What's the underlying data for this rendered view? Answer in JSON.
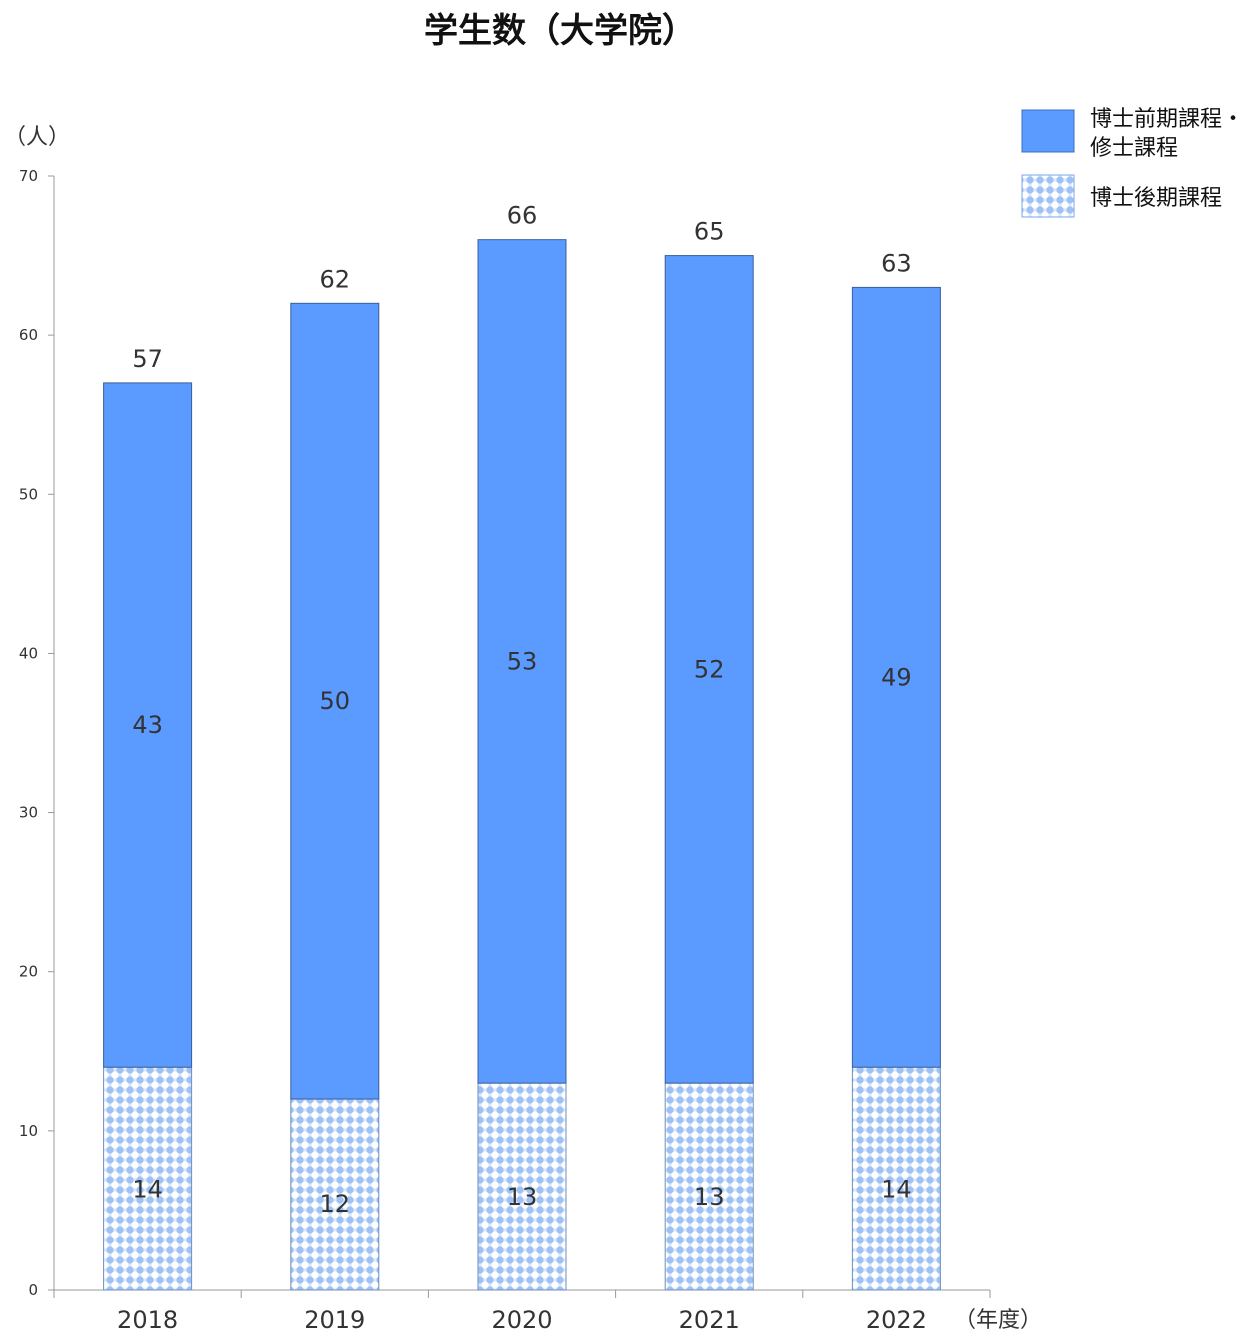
{
  "chart_data": {
    "type": "bar",
    "stacked": true,
    "title": "学生数（大学院）",
    "ylabel": "（人）",
    "xlabel": "（年度）",
    "ylim": [
      0,
      70
    ],
    "yticks": [
      0,
      10,
      20,
      30,
      40,
      50,
      60,
      70
    ],
    "categories": [
      "2018",
      "2019",
      "2020",
      "2021",
      "2022"
    ],
    "series": [
      {
        "name": "博士後期課程",
        "values": [
          14,
          12,
          13,
          13,
          14
        ],
        "color": "#bcd4f7",
        "pattern": "dots"
      },
      {
        "name": "博士前期課程・修士課程",
        "values": [
          43,
          50,
          53,
          52,
          49
        ],
        "color": "#5b9bff"
      }
    ],
    "totals": [
      57,
      62,
      66,
      65,
      63
    ],
    "legend": {
      "placement": "top-right",
      "entries": [
        {
          "lines": [
            "博士前期課程・",
            "修士課程"
          ]
        },
        {
          "lines": [
            "博士後期課程"
          ]
        }
      ]
    },
    "grid": false
  }
}
